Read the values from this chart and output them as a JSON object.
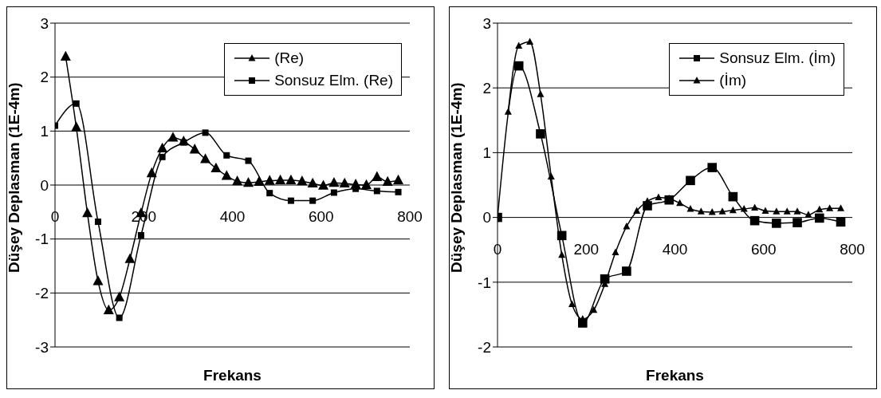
{
  "chart_data": [
    {
      "type": "line",
      "xlabel": "Frekans",
      "ylabel": "Düşey Deplasman (1E-4m)",
      "xlim": [
        0,
        800
      ],
      "xticks": [
        0,
        200,
        400,
        600,
        800
      ],
      "ylim": [
        -3,
        3
      ],
      "yticks": [
        -3,
        -2,
        -1,
        0,
        1,
        2,
        3
      ],
      "grid": "y",
      "legend": "top right",
      "line_style": "solid",
      "series": [
        {
          "name": "(Re)",
          "color": "#000000",
          "marker": "triangle",
          "x": [
            24,
            48,
            73,
            97,
            121,
            145,
            169,
            194,
            218,
            242,
            266,
            290,
            315,
            339,
            363,
            387,
            411,
            436,
            460,
            484,
            508,
            532,
            557,
            581,
            605,
            629,
            653,
            678,
            702,
            726,
            750,
            774
          ],
          "values": [
            2.38,
            1.07,
            -0.52,
            -1.78,
            -2.32,
            -2.08,
            -1.37,
            -0.52,
            0.22,
            0.68,
            0.88,
            0.81,
            0.66,
            0.48,
            0.31,
            0.17,
            0.07,
            0.04,
            0.06,
            0.08,
            0.09,
            0.09,
            0.07,
            0.03,
            -0.01,
            0.04,
            0.03,
            0.01,
            0,
            0.15,
            0.06,
            0.09
          ]
        },
        {
          "name": "Sonsuz Elm. (Re)",
          "color": "#000000",
          "marker": "square",
          "x": [
            0,
            48,
            97,
            145,
            194,
            242,
            290,
            339,
            387,
            436,
            484,
            532,
            581,
            629,
            678,
            726,
            774
          ],
          "values": [
            1.1,
            1.51,
            -0.68,
            -2.46,
            -0.93,
            0.52,
            0.79,
            0.97,
            0.55,
            0.45,
            -0.15,
            -0.29,
            -0.29,
            -0.14,
            -0.07,
            -0.11,
            -0.13
          ]
        }
      ]
    },
    {
      "type": "line",
      "xlabel": "Frekans",
      "ylabel": "Düşey Deplasman (1E-4m)",
      "xlim": [
        0,
        800
      ],
      "xticks": [
        0,
        200,
        400,
        600,
        800
      ],
      "ylim": [
        -2,
        3
      ],
      "yticks": [
        -2,
        -1,
        0,
        1,
        2,
        3
      ],
      "grid": "y",
      "legend": "top right",
      "line_style": "solid",
      "series": [
        {
          "name": "Sonsuz Elm. (İm)",
          "color": "#000000",
          "marker": "square",
          "x": [
            0,
            48,
            97,
            145,
            192,
            242,
            291,
            338,
            387,
            435,
            484,
            531,
            580,
            629,
            676,
            726,
            774
          ],
          "values": [
            0,
            2.34,
            1.29,
            -0.28,
            -1.63,
            -0.95,
            -0.83,
            0.18,
            0.27,
            0.57,
            0.77,
            0.32,
            -0.05,
            -0.09,
            -0.08,
            -0.01,
            -0.07
          ]
        },
        {
          "name": "(İm)",
          "color": "#000000",
          "marker": "triangle",
          "x": [
            24,
            48,
            73,
            97,
            121,
            145,
            168,
            192,
            217,
            242,
            266,
            291,
            314,
            338,
            363,
            387,
            411,
            435,
            459,
            484,
            507,
            531,
            556,
            580,
            604,
            629,
            653,
            676,
            701,
            726,
            749,
            774
          ],
          "values": [
            1.63,
            2.65,
            2.71,
            1.9,
            0.63,
            -0.58,
            -1.34,
            -1.57,
            -1.43,
            -1.03,
            -0.54,
            -0.14,
            0.1,
            0.25,
            0.31,
            0.29,
            0.22,
            0.13,
            0.09,
            0.08,
            0.09,
            0.11,
            0.13,
            0.15,
            0.1,
            0.09,
            0.09,
            0.09,
            0.04,
            0.12,
            0.14,
            0.14
          ]
        }
      ]
    }
  ]
}
